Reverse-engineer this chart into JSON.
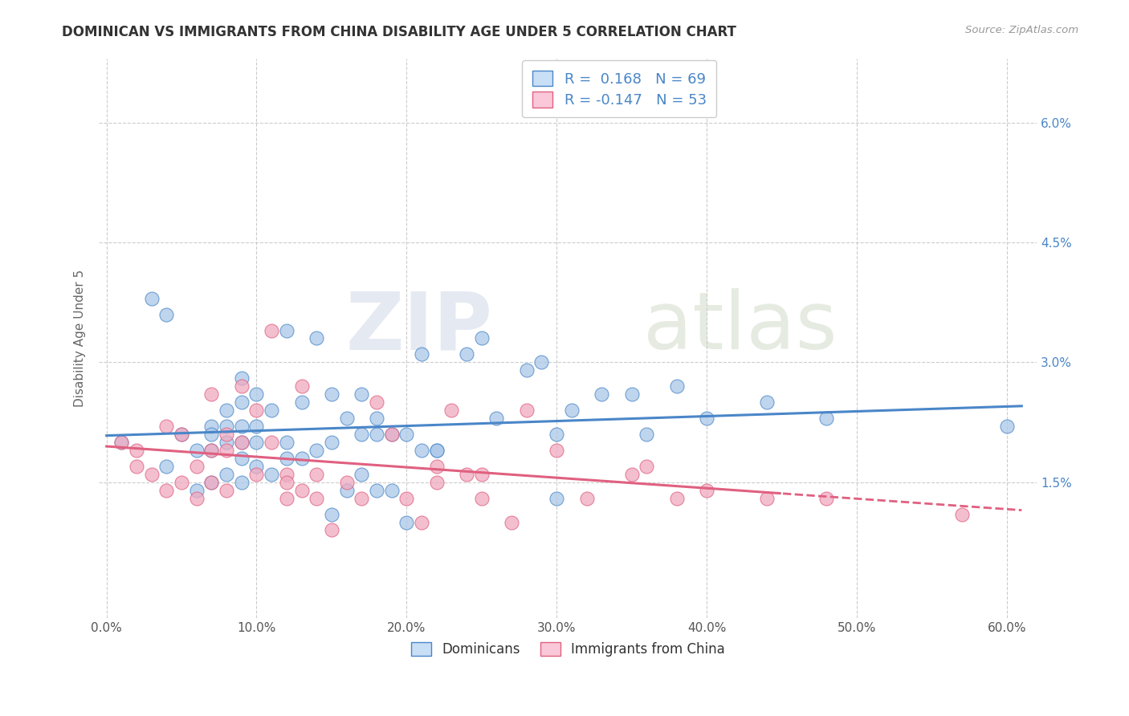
{
  "title": "DOMINICAN VS IMMIGRANTS FROM CHINA DISABILITY AGE UNDER 5 CORRELATION CHART",
  "source": "Source: ZipAtlas.com",
  "ylabel": "Disability Age Under 5",
  "xticklabels": [
    "0.0%",
    "10.0%",
    "20.0%",
    "30.0%",
    "40.0%",
    "50.0%",
    "60.0%"
  ],
  "xticks": [
    0.0,
    0.1,
    0.2,
    0.3,
    0.4,
    0.5,
    0.6
  ],
  "yticklabels": [
    "1.5%",
    "3.0%",
    "4.5%",
    "6.0%"
  ],
  "yticks": [
    0.015,
    0.03,
    0.045,
    0.06
  ],
  "ylim": [
    -0.002,
    0.068
  ],
  "xlim": [
    -0.005,
    0.62
  ],
  "dominicans_color": "#aac8e8",
  "china_color": "#f0aac0",
  "dominicans_line_color": "#4a86c8",
  "china_line_color": "#e06080",
  "legend_box_color_dom": "#c8dff5",
  "legend_box_color_china": "#fac8d8",
  "R_dom": 0.168,
  "N_dom": 69,
  "R_china": -0.147,
  "N_china": 53,
  "watermark_zip": "ZIP",
  "watermark_atlas": "atlas",
  "dom_scatter_x": [
    0.01,
    0.03,
    0.04,
    0.04,
    0.05,
    0.06,
    0.06,
    0.07,
    0.07,
    0.07,
    0.07,
    0.08,
    0.08,
    0.08,
    0.08,
    0.09,
    0.09,
    0.09,
    0.09,
    0.09,
    0.09,
    0.1,
    0.1,
    0.1,
    0.1,
    0.11,
    0.11,
    0.12,
    0.12,
    0.12,
    0.13,
    0.13,
    0.14,
    0.14,
    0.15,
    0.15,
    0.15,
    0.16,
    0.16,
    0.17,
    0.17,
    0.17,
    0.18,
    0.18,
    0.18,
    0.19,
    0.19,
    0.2,
    0.2,
    0.21,
    0.21,
    0.22,
    0.22,
    0.24,
    0.25,
    0.26,
    0.28,
    0.29,
    0.3,
    0.3,
    0.31,
    0.33,
    0.35,
    0.36,
    0.38,
    0.4,
    0.44,
    0.48,
    0.6
  ],
  "dom_scatter_y": [
    0.02,
    0.038,
    0.017,
    0.036,
    0.021,
    0.019,
    0.014,
    0.022,
    0.021,
    0.019,
    0.015,
    0.024,
    0.022,
    0.02,
    0.016,
    0.028,
    0.025,
    0.022,
    0.02,
    0.018,
    0.015,
    0.026,
    0.022,
    0.02,
    0.017,
    0.024,
    0.016,
    0.034,
    0.02,
    0.018,
    0.025,
    0.018,
    0.033,
    0.019,
    0.026,
    0.02,
    0.011,
    0.023,
    0.014,
    0.026,
    0.021,
    0.016,
    0.023,
    0.021,
    0.014,
    0.021,
    0.014,
    0.021,
    0.01,
    0.031,
    0.019,
    0.019,
    0.019,
    0.031,
    0.033,
    0.023,
    0.029,
    0.03,
    0.021,
    0.013,
    0.024,
    0.026,
    0.026,
    0.021,
    0.027,
    0.023,
    0.025,
    0.023,
    0.022
  ],
  "china_scatter_x": [
    0.01,
    0.02,
    0.02,
    0.03,
    0.04,
    0.04,
    0.05,
    0.05,
    0.06,
    0.06,
    0.07,
    0.07,
    0.07,
    0.08,
    0.08,
    0.08,
    0.09,
    0.09,
    0.1,
    0.1,
    0.11,
    0.11,
    0.12,
    0.12,
    0.12,
    0.13,
    0.13,
    0.14,
    0.14,
    0.15,
    0.16,
    0.17,
    0.18,
    0.19,
    0.2,
    0.21,
    0.22,
    0.22,
    0.23,
    0.24,
    0.25,
    0.25,
    0.27,
    0.28,
    0.3,
    0.32,
    0.35,
    0.36,
    0.38,
    0.4,
    0.44,
    0.48,
    0.57
  ],
  "china_scatter_y": [
    0.02,
    0.019,
    0.017,
    0.016,
    0.022,
    0.014,
    0.021,
    0.015,
    0.017,
    0.013,
    0.026,
    0.019,
    0.015,
    0.021,
    0.019,
    0.014,
    0.027,
    0.02,
    0.024,
    0.016,
    0.034,
    0.02,
    0.016,
    0.015,
    0.013,
    0.027,
    0.014,
    0.016,
    0.013,
    0.009,
    0.015,
    0.013,
    0.025,
    0.021,
    0.013,
    0.01,
    0.017,
    0.015,
    0.024,
    0.016,
    0.016,
    0.013,
    0.01,
    0.024,
    0.019,
    0.013,
    0.016,
    0.017,
    0.013,
    0.014,
    0.013,
    0.013,
    0.011
  ]
}
